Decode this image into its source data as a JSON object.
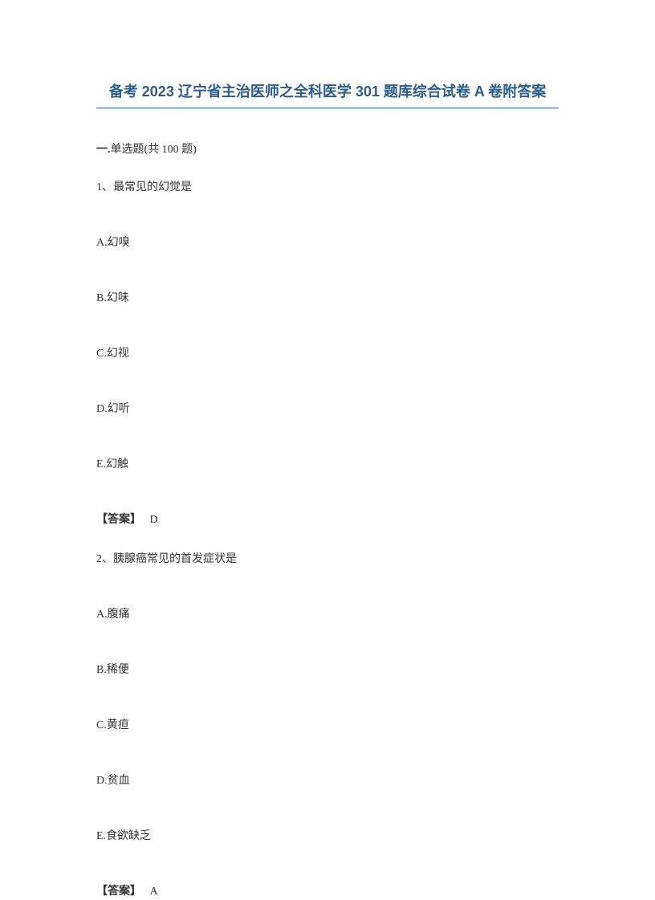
{
  "title": "备考 2023 辽宁省主治医师之全科医学 301 题库综合试卷 A 卷附答案",
  "section_header_prefix": "一.",
  "section_header_type": "单选题",
  "section_header_count": "(共 100 题)",
  "questions": [
    {
      "number": "1、",
      "text": "最常见的幻觉是",
      "options": [
        {
          "label": "A.",
          "text": "幻嗅"
        },
        {
          "label": "B.",
          "text": "幻味"
        },
        {
          "label": "C.",
          "text": "幻视"
        },
        {
          "label": "D.",
          "text": "幻听"
        },
        {
          "label": "E.",
          "text": "幻触"
        }
      ],
      "answer_label": "【答案】",
      "answer_value": "D"
    },
    {
      "number": "2、",
      "text": "胰腺癌常见的首发症状是",
      "options": [
        {
          "label": "A.",
          "text": "腹痛"
        },
        {
          "label": "B.",
          "text": "稀便"
        },
        {
          "label": "C.",
          "text": "黄疸"
        },
        {
          "label": "D.",
          "text": "贫血"
        },
        {
          "label": "E.",
          "text": "食欲缺乏"
        }
      ],
      "answer_label": "【答案】",
      "answer_value": "A"
    }
  ]
}
